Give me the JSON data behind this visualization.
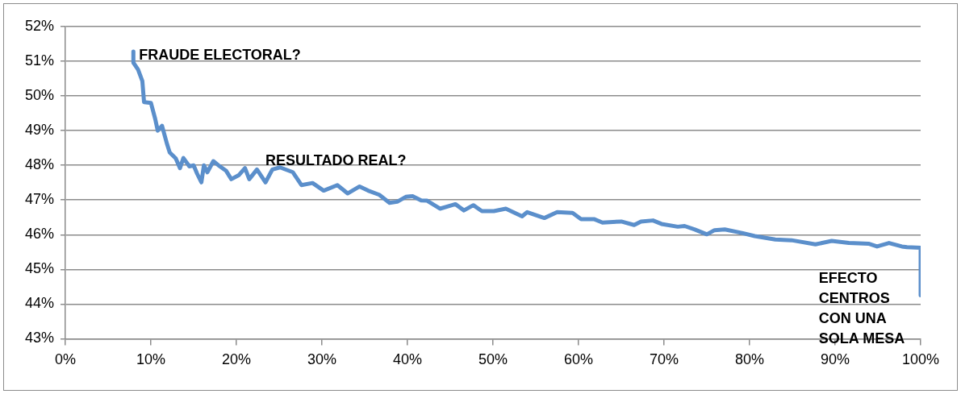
{
  "chart_data": {
    "type": "line",
    "x": [
      7.95,
      7.95,
      8.5,
      9.0,
      9.2,
      10.0,
      10.5,
      10.8,
      11.3,
      11.9,
      12.2,
      12.9,
      13.4,
      13.8,
      14.5,
      15.0,
      15.4,
      15.9,
      16.2,
      16.6,
      17.3,
      17.9,
      18.8,
      19.4,
      20.3,
      21.0,
      21.5,
      22.4,
      23.4,
      24.2,
      25.1,
      26.6,
      27.6,
      28.9,
      30.2,
      31.8,
      33.0,
      34.4,
      35.4,
      36.7,
      37.9,
      38.8,
      39.8,
      40.6,
      41.6,
      42.3,
      43.8,
      45.6,
      46.6,
      47.7,
      48.7,
      50.1,
      51.5,
      53.4,
      54.0,
      56.0,
      57.5,
      59.3,
      60.3,
      61.8,
      62.8,
      65.0,
      66.5,
      67.3,
      68.7,
      69.7,
      71.6,
      72.4,
      73.6,
      75.0,
      75.9,
      77.1,
      79.1,
      80.6,
      83.0,
      84.9,
      87.7,
      89.6,
      91.6,
      93.9,
      94.9,
      96.3,
      97.8,
      98.4,
      100,
      100
    ],
    "series": [
      {
        "color": "#5b8fcb",
        "values": [
          51.28,
          50.96,
          50.76,
          50.43,
          49.82,
          49.8,
          49.34,
          49.0,
          49.14,
          48.6,
          48.37,
          48.2,
          47.92,
          48.21,
          47.97,
          48.0,
          47.76,
          47.51,
          48.0,
          47.8,
          48.12,
          48.0,
          47.84,
          47.6,
          47.72,
          47.92,
          47.6,
          47.88,
          47.51,
          47.88,
          47.94,
          47.8,
          47.43,
          47.49,
          47.27,
          47.43,
          47.19,
          47.39,
          47.27,
          47.15,
          46.92,
          46.95,
          47.09,
          47.11,
          46.99,
          46.98,
          46.75,
          46.88,
          46.7,
          46.85,
          46.68,
          46.68,
          46.75,
          46.53,
          46.65,
          46.48,
          46.65,
          46.63,
          46.45,
          46.45,
          46.35,
          46.38,
          46.28,
          46.38,
          46.41,
          46.31,
          46.23,
          46.25,
          46.15,
          46.01,
          46.13,
          46.15,
          46.05,
          45.96,
          45.86,
          45.84,
          45.72,
          45.82,
          45.76,
          45.74,
          45.66,
          45.76,
          45.66,
          45.64,
          45.62,
          44.25
        ]
      }
    ],
    "xlim": [
      0,
      100
    ],
    "xticks": [
      {
        "value": 0,
        "label": "0%"
      },
      {
        "value": 10,
        "label": "10%"
      },
      {
        "value": 20,
        "label": "20%"
      },
      {
        "value": 30,
        "label": "30%"
      },
      {
        "value": 40,
        "label": "40%"
      },
      {
        "value": 50,
        "label": "50%"
      },
      {
        "value": 60,
        "label": "60%"
      },
      {
        "value": 70,
        "label": "70%"
      },
      {
        "value": 80,
        "label": "80%"
      },
      {
        "value": 90,
        "label": "90%"
      },
      {
        "value": 100,
        "label": "100%"
      }
    ],
    "ylim": [
      43,
      52
    ],
    "yticks": [
      {
        "value": 43,
        "label": "43%"
      },
      {
        "value": 44,
        "label": "44%"
      },
      {
        "value": 45,
        "label": "45%"
      },
      {
        "value": 46,
        "label": "46%"
      },
      {
        "value": 47,
        "label": "47%"
      },
      {
        "value": 48,
        "label": "48%"
      },
      {
        "value": 49,
        "label": "49%"
      },
      {
        "value": 50,
        "label": "50%"
      },
      {
        "value": 51,
        "label": "51%"
      },
      {
        "value": 52,
        "label": "52%"
      }
    ],
    "grid": "y",
    "legend": false,
    "marker": "none",
    "line_style": "solid",
    "annotations": [
      {
        "text": "FRAUDE ELECTORAL?",
        "x": 8.6,
        "y": 51.05
      },
      "RESULTADO REAL?",
      "EFECTO\nCENTROS\nCON UNA\nSOLA MESA"
    ]
  }
}
